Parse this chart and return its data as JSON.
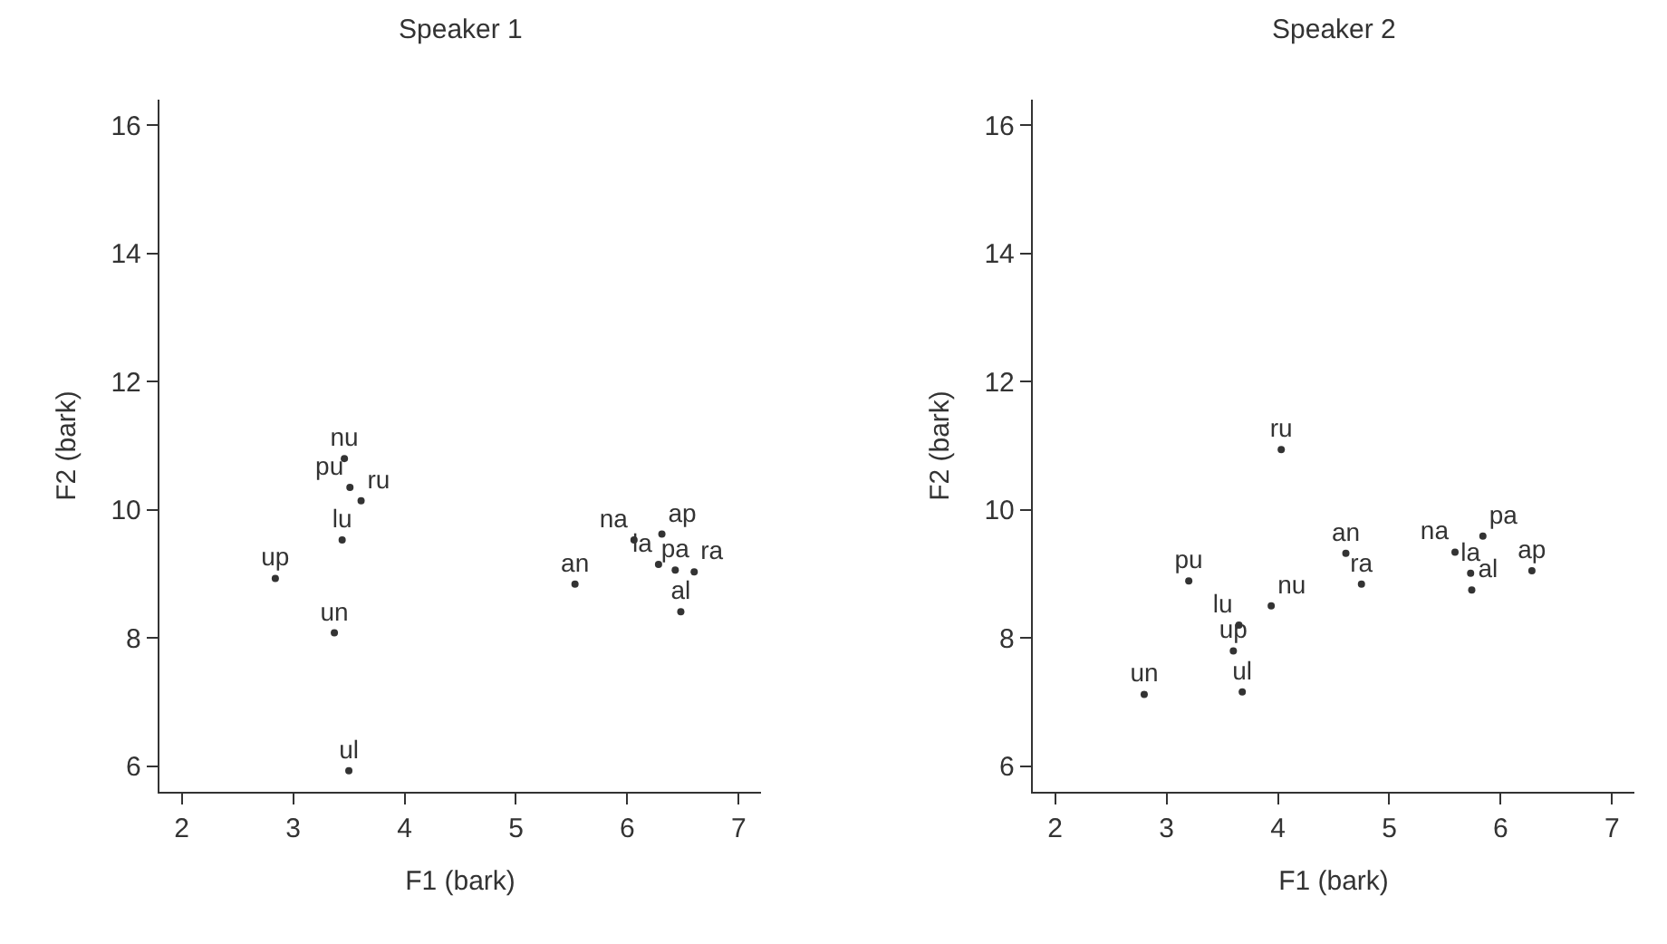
{
  "chart_data": [
    {
      "type": "scatter",
      "title": "Speaker 1",
      "xlabel": "F1 (bark)",
      "ylabel": "F2 (bark)",
      "marker": "circle",
      "xlim": [
        1.8,
        7.2
      ],
      "xticks": [
        2,
        3,
        4,
        5,
        6,
        7
      ],
      "ylim": [
        5.6,
        16.4
      ],
      "yticks": [
        6,
        8,
        10,
        12,
        14,
        16
      ],
      "series": [
        {
          "color": "#333333",
          "x": [
            3.46,
            3.51,
            3.61,
            3.44,
            2.84,
            3.37,
            3.5,
            5.53,
            6.06,
            6.31,
            6.28,
            6.43,
            6.6,
            6.48
          ],
          "values": [
            10.8,
            10.35,
            10.14,
            9.53,
            8.93,
            8.08,
            5.93,
            8.84,
            9.53,
            9.62,
            9.15,
            9.06,
            9.03,
            8.41
          ],
          "value_labels": [
            "nu",
            "pu",
            "ru",
            "lu",
            "up",
            "un",
            "ul",
            "an",
            "na",
            "ap",
            "la",
            "pa",
            "ra",
            "al"
          ]
        }
      ]
    },
    {
      "type": "scatter",
      "title": "Speaker 2",
      "xlabel": "F1 (bark)",
      "ylabel": "F2 (bark)",
      "marker": "circle",
      "xlim": [
        1.8,
        7.2
      ],
      "xticks": [
        2,
        3,
        4,
        5,
        6,
        7
      ],
      "ylim": [
        5.6,
        16.4
      ],
      "yticks": [
        6,
        8,
        10,
        12,
        14,
        16
      ],
      "series": [
        {
          "color": "#333333",
          "x": [
            4.03,
            4.61,
            4.75,
            3.2,
            3.94,
            3.65,
            3.6,
            2.8,
            3.68,
            5.59,
            5.84,
            5.73,
            5.74,
            6.28
          ],
          "values": [
            10.94,
            9.32,
            8.84,
            8.89,
            8.5,
            8.2,
            7.8,
            7.12,
            7.16,
            9.34,
            9.59,
            9.01,
            8.75,
            9.05
          ],
          "value_labels": [
            "ru",
            "an",
            "ra",
            "pu",
            "nu",
            "lu",
            "up",
            "un",
            "ul",
            "na",
            "pa",
            "la",
            "al",
            "ap"
          ]
        }
      ]
    }
  ]
}
